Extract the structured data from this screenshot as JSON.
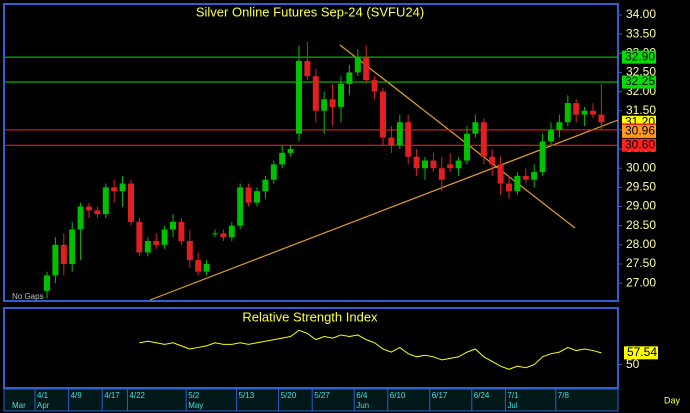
{
  "chart_data": {
    "type": "candlestick",
    "title": "Silver Online Futures Sep-24 (SVFU24)",
    "note": "No Gaps",
    "interval": "Day",
    "x_start_label": "Mar",
    "colors": {
      "up": "#00c000",
      "down": "#e02020",
      "title": "#ffff40",
      "trend": "#e0a020"
    },
    "ylim": [
      26.56,
      34.26
    ],
    "yticks": [
      {
        "value": 34,
        "label": "34.00"
      },
      {
        "value": 33.5,
        "label": "33.50"
      },
      {
        "value": 33,
        "label": "33.00"
      },
      {
        "value": 32.5,
        "label": "32.50"
      },
      {
        "value": 32,
        "label": "32.00"
      },
      {
        "value": 31.5,
        "label": "31.50"
      },
      {
        "value": 31,
        "label": "31.00"
      },
      {
        "value": 30.5,
        "label": "30.50"
      },
      {
        "value": 30,
        "label": "30.00"
      },
      {
        "value": 29.5,
        "label": "29.50"
      },
      {
        "value": 29,
        "label": "29.00"
      },
      {
        "value": 28.5,
        "label": "28.50"
      },
      {
        "value": 28,
        "label": "28.00"
      },
      {
        "value": 27.5,
        "label": "27.50"
      },
      {
        "value": 27,
        "label": "27.00"
      }
    ],
    "levels": [
      {
        "value": 32.9,
        "label": "32.90",
        "color": "#00e000",
        "line": true
      },
      {
        "value": 32.25,
        "label": "32.25",
        "color": "#00e000",
        "line": true
      },
      {
        "value": 31.2,
        "label": "31.20",
        "color": "#ffff00",
        "line": false
      },
      {
        "value": 31.0,
        "label": "31.00",
        "color": "#ff2020",
        "line": true
      },
      {
        "value": 30.96,
        "label": "30.96",
        "color": "#ff9a20",
        "line": false
      },
      {
        "value": 30.6,
        "label": "30.60",
        "color": "#ff2020",
        "line": true
      }
    ],
    "categories": [
      "4/1",
      null,
      null,
      null,
      "4/9",
      null,
      null,
      null,
      "4/17",
      null,
      null,
      "4/22",
      null,
      null,
      null,
      null,
      null,
      null,
      "5/2",
      null,
      null,
      null,
      null,
      null,
      "5/13",
      null,
      null,
      null,
      null,
      "5/20",
      null,
      null,
      null,
      "5/27",
      null,
      null,
      null,
      null,
      "6/4",
      null,
      null,
      null,
      "6/10",
      null,
      null,
      null,
      null,
      "6/17",
      null,
      null,
      null,
      null,
      "6/24",
      null,
      null,
      null,
      "7/1",
      null,
      null,
      null,
      null,
      null,
      "7/8",
      null,
      null,
      null,
      null
    ],
    "months": [
      "Apr",
      null,
      null,
      null,
      null,
      null,
      null,
      null,
      null,
      null,
      null,
      null,
      null,
      null,
      null,
      null,
      null,
      null,
      "May",
      null,
      null,
      null,
      null,
      null,
      null,
      null,
      null,
      null,
      null,
      null,
      null,
      null,
      null,
      null,
      null,
      null,
      null,
      null,
      "Jun",
      null,
      null,
      null,
      null,
      null,
      null,
      null,
      null,
      null,
      null,
      null,
      null,
      null,
      null,
      null,
      null,
      null,
      "Jul",
      null,
      null,
      null,
      null,
      null,
      null,
      null,
      null,
      null,
      null
    ],
    "open": [
      26.8,
      27.2,
      28.0,
      27.5,
      28.4,
      29.0,
      28.9,
      28.8,
      29.5,
      29.4,
      29.6,
      28.6,
      27.8,
      28.1,
      28.0,
      28.4,
      28.6,
      28.1,
      27.6,
      27.3,
      28.3,
      28.3,
      28.2,
      28.5,
      29.5,
      29.1,
      29.4,
      29.7,
      30.1,
      30.4,
      30.9,
      32.8,
      32.4,
      31.5,
      31.8,
      31.6,
      32.2,
      32.5,
      32.9,
      32.3,
      32.0,
      30.8,
      30.6,
      31.2,
      30.3,
      30.0,
      30.2,
      30.0,
      30.1,
      30.0,
      30.2,
      30.9,
      31.2,
      30.3,
      30.1,
      29.6,
      29.4,
      29.8,
      29.7,
      29.9,
      30.7,
      31.0,
      31.2,
      31.7,
      31.4,
      31.5,
      31.4
    ],
    "high": [
      27.3,
      28.2,
      28.3,
      28.6,
      29.1,
      29.1,
      29.0,
      29.6,
      29.7,
      29.8,
      29.7,
      28.7,
      28.2,
      28.3,
      28.5,
      28.8,
      28.7,
      28.4,
      27.8,
      27.6,
      28.4,
      28.4,
      28.6,
      29.6,
      29.6,
      29.5,
      29.8,
      30.2,
      30.6,
      30.6,
      33.2,
      33.3,
      32.6,
      32.0,
      32.2,
      32.4,
      32.7,
      33.1,
      33.2,
      32.4,
      32.1,
      31.1,
      31.4,
      31.4,
      30.5,
      30.3,
      30.4,
      30.3,
      30.4,
      30.3,
      31.1,
      31.4,
      31.3,
      30.5,
      30.3,
      29.8,
      29.9,
      30.0,
      30.1,
      30.9,
      31.2,
      31.4,
      31.9,
      31.8,
      31.6,
      31.7,
      32.2
    ],
    "low": [
      26.6,
      27.0,
      27.2,
      27.3,
      27.6,
      28.7,
      28.7,
      28.7,
      29.1,
      29.0,
      28.5,
      27.7,
      27.7,
      27.9,
      27.9,
      28.2,
      28.0,
      27.4,
      27.2,
      27.2,
      28.2,
      28.1,
      28.1,
      28.4,
      29.0,
      29.0,
      29.2,
      29.6,
      30.0,
      30.3,
      30.7,
      32.3,
      31.2,
      30.9,
      31.1,
      31.2,
      31.9,
      32.4,
      32.2,
      31.8,
      30.6,
      30.4,
      30.5,
      30.1,
      29.8,
      29.7,
      29.9,
      29.4,
      29.9,
      29.8,
      30.1,
      30.8,
      30.1,
      29.8,
      29.3,
      29.2,
      29.3,
      29.6,
      29.5,
      29.8,
      30.6,
      30.8,
      31.1,
      31.2,
      31.1,
      31.3,
      31.0
    ],
    "close": [
      27.2,
      28.0,
      27.5,
      28.4,
      29.0,
      28.9,
      28.8,
      29.5,
      29.4,
      29.6,
      28.6,
      27.8,
      28.1,
      28.0,
      28.4,
      28.6,
      28.1,
      27.6,
      27.3,
      27.5,
      28.3,
      28.2,
      28.5,
      29.5,
      29.1,
      29.4,
      29.7,
      30.1,
      30.4,
      30.5,
      32.8,
      32.4,
      31.5,
      31.8,
      31.6,
      32.2,
      32.5,
      32.9,
      32.3,
      32.0,
      30.8,
      30.6,
      31.2,
      30.3,
      30.0,
      30.2,
      30.0,
      29.7,
      30.0,
      30.2,
      30.9,
      31.2,
      30.3,
      30.1,
      29.6,
      29.4,
      29.8,
      29.7,
      29.9,
      30.7,
      31.0,
      31.2,
      31.7,
      31.4,
      31.5,
      31.4,
      31.2
    ],
    "rsi": {
      "title": "Relative Strength Index",
      "color": "#ffff00",
      "ylim": [
        35,
        85
      ],
      "yticks": [
        50
      ],
      "last_label": "57.54",
      "values": [
        null,
        null,
        null,
        null,
        null,
        null,
        null,
        null,
        null,
        null,
        null,
        64,
        65,
        64,
        63,
        64,
        62,
        60,
        61,
        62,
        64,
        63,
        63,
        64,
        63,
        64,
        65,
        66,
        67,
        68,
        72,
        70,
        66,
        68,
        67,
        69,
        68,
        69,
        66,
        64,
        60,
        58,
        61,
        57,
        55,
        56,
        55,
        53,
        54,
        55,
        58,
        60,
        55,
        52,
        49,
        47,
        49,
        48,
        50,
        55,
        57,
        58,
        61,
        59,
        60,
        59,
        57.54
      ]
    }
  }
}
